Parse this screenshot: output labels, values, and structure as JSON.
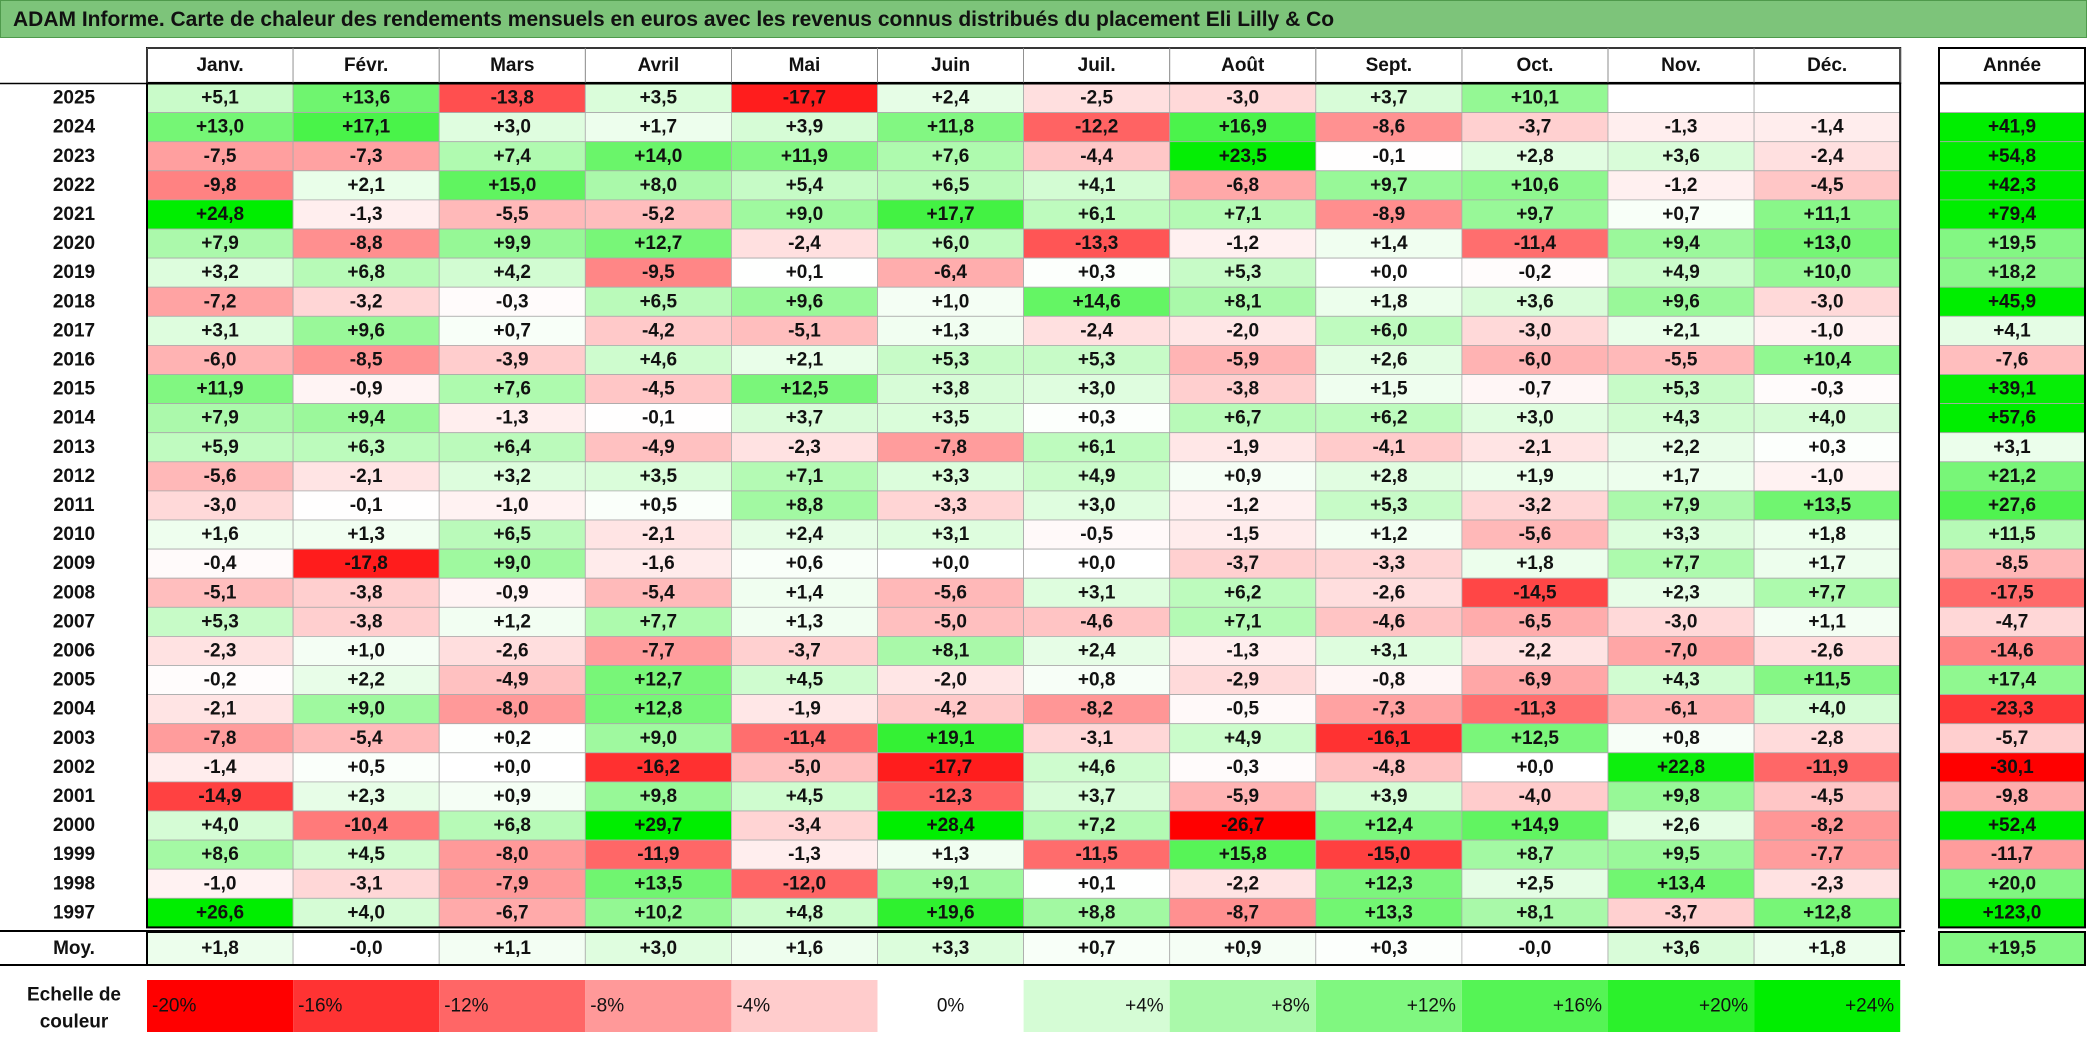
{
  "title": "ADAM Informe. Carte de chaleur des rendements mensuels en euros avec les revenus connus distribués du placement Eli Lilly & Co",
  "chart_data": {
    "type": "heatmap",
    "title": "ADAM Informe. Carte de chaleur des rendements mensuels en euros avec les revenus connus distribués du placement Eli Lilly & Co",
    "columns": [
      "Janv.",
      "Févr.",
      "Mars",
      "Avril",
      "Mai",
      "Juin",
      "Juil.",
      "Août",
      "Sept.",
      "Oct.",
      "Nov.",
      "Déc."
    ],
    "year_header": "Année",
    "rows": [
      {
        "year": "2025",
        "values": [
          "+5,1",
          "+13,6",
          "-13,8",
          "+3,5",
          "-17,7",
          "+2,4",
          "-2,5",
          "-3,0",
          "+3,7",
          "+10,1",
          "",
          ""
        ],
        "annual": ""
      },
      {
        "year": "2024",
        "values": [
          "+13,0",
          "+17,1",
          "+3,0",
          "+1,7",
          "+3,9",
          "+11,8",
          "-12,2",
          "+16,9",
          "-8,6",
          "-3,7",
          "-1,3",
          "-1,4"
        ],
        "annual": "+41,9"
      },
      {
        "year": "2023",
        "values": [
          "-7,5",
          "-7,3",
          "+7,4",
          "+14,0",
          "+11,9",
          "+7,6",
          "-4,4",
          "+23,5",
          "-0,1",
          "+2,8",
          "+3,6",
          "-2,4"
        ],
        "annual": "+54,8"
      },
      {
        "year": "2022",
        "values": [
          "-9,8",
          "+2,1",
          "+15,0",
          "+8,0",
          "+5,4",
          "+6,5",
          "+4,1",
          "-6,8",
          "+9,7",
          "+10,6",
          "-1,2",
          "-4,5"
        ],
        "annual": "+42,3"
      },
      {
        "year": "2021",
        "values": [
          "+24,8",
          "-1,3",
          "-5,5",
          "-5,2",
          "+9,0",
          "+17,7",
          "+6,1",
          "+7,1",
          "-8,9",
          "+9,7",
          "+0,7",
          "+11,1"
        ],
        "annual": "+79,4"
      },
      {
        "year": "2020",
        "values": [
          "+7,9",
          "-8,8",
          "+9,9",
          "+12,7",
          "-2,4",
          "+6,0",
          "-13,3",
          "-1,2",
          "+1,4",
          "-11,4",
          "+9,4",
          "+13,0"
        ],
        "annual": "+19,5"
      },
      {
        "year": "2019",
        "values": [
          "+3,2",
          "+6,8",
          "+4,2",
          "-9,5",
          "+0,1",
          "-6,4",
          "+0,3",
          "+5,3",
          "+0,0",
          "-0,2",
          "+4,9",
          "+10,0"
        ],
        "annual": "+18,2"
      },
      {
        "year": "2018",
        "values": [
          "-7,2",
          "-3,2",
          "-0,3",
          "+6,5",
          "+9,6",
          "+1,0",
          "+14,6",
          "+8,1",
          "+1,8",
          "+3,6",
          "+9,6",
          "-3,0"
        ],
        "annual": "+45,9"
      },
      {
        "year": "2017",
        "values": [
          "+3,1",
          "+9,6",
          "+0,7",
          "-4,2",
          "-5,1",
          "+1,3",
          "-2,4",
          "-2,0",
          "+6,0",
          "-3,0",
          "+2,1",
          "-1,0"
        ],
        "annual": "+4,1"
      },
      {
        "year": "2016",
        "values": [
          "-6,0",
          "-8,5",
          "-3,9",
          "+4,6",
          "+2,1",
          "+5,3",
          "+5,3",
          "-5,9",
          "+2,6",
          "-6,0",
          "-5,5",
          "+10,4"
        ],
        "annual": "-7,6"
      },
      {
        "year": "2015",
        "values": [
          "+11,9",
          "-0,9",
          "+7,6",
          "-4,5",
          "+12,5",
          "+3,8",
          "+3,0",
          "-3,8",
          "+1,5",
          "-0,7",
          "+5,3",
          "-0,3"
        ],
        "annual": "+39,1"
      },
      {
        "year": "2014",
        "values": [
          "+7,9",
          "+9,4",
          "-1,3",
          "-0,1",
          "+3,7",
          "+3,5",
          "+0,3",
          "+6,7",
          "+6,2",
          "+3,0",
          "+4,3",
          "+4,0"
        ],
        "annual": "+57,6"
      },
      {
        "year": "2013",
        "values": [
          "+5,9",
          "+6,3",
          "+6,4",
          "-4,9",
          "-2,3",
          "-7,8",
          "+6,1",
          "-1,9",
          "-4,1",
          "-2,1",
          "+2,2",
          "+0,3"
        ],
        "annual": "+3,1"
      },
      {
        "year": "2012",
        "values": [
          "-5,6",
          "-2,1",
          "+3,2",
          "+3,5",
          "+7,1",
          "+3,3",
          "+4,9",
          "+0,9",
          "+2,8",
          "+1,9",
          "+1,7",
          "-1,0"
        ],
        "annual": "+21,2"
      },
      {
        "year": "2011",
        "values": [
          "-3,0",
          "-0,1",
          "-1,0",
          "+0,5",
          "+8,8",
          "-3,3",
          "+3,0",
          "-1,2",
          "+5,3",
          "-3,2",
          "+7,9",
          "+13,5"
        ],
        "annual": "+27,6"
      },
      {
        "year": "2010",
        "values": [
          "+1,6",
          "+1,3",
          "+6,5",
          "-2,1",
          "+2,4",
          "+3,1",
          "-0,5",
          "-1,5",
          "+1,2",
          "-5,6",
          "+3,3",
          "+1,8"
        ],
        "annual": "+11,5"
      },
      {
        "year": "2009",
        "values": [
          "-0,4",
          "-17,8",
          "+9,0",
          "-1,6",
          "+0,6",
          "+0,0",
          "+0,0",
          "-3,7",
          "-3,3",
          "+1,8",
          "+7,7",
          "+1,7"
        ],
        "annual": "-8,5"
      },
      {
        "year": "2008",
        "values": [
          "-5,1",
          "-3,8",
          "-0,9",
          "-5,4",
          "+1,4",
          "-5,6",
          "+3,1",
          "+6,2",
          "-2,6",
          "-14,5",
          "+2,3",
          "+7,7"
        ],
        "annual": "-17,5"
      },
      {
        "year": "2007",
        "values": [
          "+5,3",
          "-3,8",
          "+1,2",
          "+7,7",
          "+1,3",
          "-5,0",
          "-4,6",
          "+7,1",
          "-4,6",
          "-6,5",
          "-3,0",
          "+1,1"
        ],
        "annual": "-4,7"
      },
      {
        "year": "2006",
        "values": [
          "-2,3",
          "+1,0",
          "-2,6",
          "-7,7",
          "-3,7",
          "+8,1",
          "+2,4",
          "-1,3",
          "+3,1",
          "-2,2",
          "-7,0",
          "-2,6"
        ],
        "annual": "-14,6"
      },
      {
        "year": "2005",
        "values": [
          "-0,2",
          "+2,2",
          "-4,9",
          "+12,7",
          "+4,5",
          "-2,0",
          "+0,8",
          "-2,9",
          "-0,8",
          "-6,9",
          "+4,3",
          "+11,5"
        ],
        "annual": "+17,4"
      },
      {
        "year": "2004",
        "values": [
          "-2,1",
          "+9,0",
          "-8,0",
          "+12,8",
          "-1,9",
          "-4,2",
          "-8,2",
          "-0,5",
          "-7,3",
          "-11,3",
          "-6,1",
          "+4,0"
        ],
        "annual": "-23,3"
      },
      {
        "year": "2003",
        "values": [
          "-7,8",
          "-5,4",
          "+0,2",
          "+9,0",
          "-11,4",
          "+19,1",
          "-3,1",
          "+4,9",
          "-16,1",
          "+12,5",
          "+0,8",
          "-2,8"
        ],
        "annual": "-5,7"
      },
      {
        "year": "2002",
        "values": [
          "-1,4",
          "+0,5",
          "+0,0",
          "-16,2",
          "-5,0",
          "-17,7",
          "+4,6",
          "-0,3",
          "-4,8",
          "+0,0",
          "+22,8",
          "-11,9"
        ],
        "annual": "-30,1"
      },
      {
        "year": "2001",
        "values": [
          "-14,9",
          "+2,3",
          "+0,9",
          "+9,8",
          "+4,5",
          "-12,3",
          "+3,7",
          "-5,9",
          "+3,9",
          "-4,0",
          "+9,8",
          "-4,5"
        ],
        "annual": "-9,8"
      },
      {
        "year": "2000",
        "values": [
          "+4,0",
          "-10,4",
          "+6,8",
          "+29,7",
          "-3,4",
          "+28,4",
          "+7,2",
          "-26,7",
          "+12,4",
          "+14,9",
          "+2,6",
          "-8,2"
        ],
        "annual": "+52,4"
      },
      {
        "year": "1999",
        "values": [
          "+8,6",
          "+4,5",
          "-8,0",
          "-11,9",
          "-1,3",
          "+1,3",
          "-11,5",
          "+15,8",
          "-15,0",
          "+8,7",
          "+9,5",
          "-7,7"
        ],
        "annual": "-11,7"
      },
      {
        "year": "1998",
        "values": [
          "-1,0",
          "-3,1",
          "-7,9",
          "+13,5",
          "-12,0",
          "+9,1",
          "+0,1",
          "-2,2",
          "+12,3",
          "+2,5",
          "+13,4",
          "-2,3"
        ],
        "annual": "+20,0"
      },
      {
        "year": "1997",
        "values": [
          "+26,6",
          "+4,0",
          "-6,7",
          "+10,2",
          "+4,8",
          "+19,6",
          "+8,8",
          "-8,7",
          "+13,3",
          "+8,1",
          "-3,7",
          "+12,8"
        ],
        "annual": "+123,0"
      }
    ],
    "average": {
      "label": "Moy.",
      "values": [
        "+1,8",
        "-0,0",
        "+1,1",
        "+3,0",
        "+1,6",
        "+3,3",
        "+0,7",
        "+0,9",
        "+0,3",
        "-0,0",
        "+3,6",
        "+1,8"
      ],
      "annual": "+19,5"
    },
    "scale": {
      "label_line1": "Echelle de",
      "label_line2": "couleur",
      "stops": [
        "-20%",
        "-16%",
        "-12%",
        "-8%",
        "-4%",
        "0%",
        "+4%",
        "+8%",
        "+12%",
        "+16%",
        "+20%",
        "+24%"
      ]
    },
    "colors": {
      "negative_max": "#ff0000",
      "zero": "#ffffff",
      "positive_max": "#00ee00",
      "title_bg": "#7dc47a"
    }
  }
}
